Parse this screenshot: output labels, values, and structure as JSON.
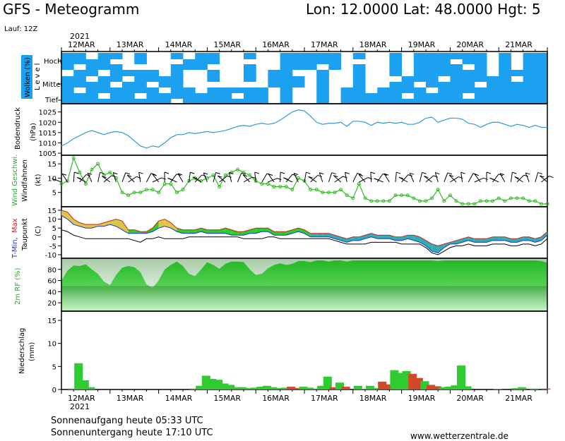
{
  "header": {
    "title": "GFS - Meteogramm",
    "coords": "Lon: 12.0000 Lat: 48.0000 Hgt: 5",
    "run": "Lauf: 12Z"
  },
  "axis": {
    "dates": [
      "12MAR",
      "13MAR",
      "14MAR",
      "15MAR",
      "16MAR",
      "17MAR",
      "18MAR",
      "19MAR",
      "20MAR",
      "21MAR"
    ],
    "year": "2021"
  },
  "panels": {
    "clouds": {
      "ylabel": "Wolken (%)",
      "levels_title": "Level",
      "levels": [
        "Hoch",
        "Mittel",
        "Tief"
      ]
    },
    "pressure": {
      "ylabel": "Bodendruck",
      "unit": "(hPa)"
    },
    "wind": {
      "ylabel_speed": "Wind Geschwi.",
      "ylabel_flags": "Windfahnen",
      "unit": "(kt)"
    },
    "temp": {
      "ylabel_min": "T-Min,",
      "ylabel_max": "Max",
      "ylabel_dew": "Taupunkt",
      "unit": "(C)"
    },
    "rh": {
      "ylabel": "2m RF (%)"
    },
    "precip": {
      "ylabel": "Niederschlag",
      "unit": "(mm)"
    }
  },
  "footer": {
    "sunrise": "Sonnenaufgang heute 05:33 UTC",
    "sunset": "Sonnenuntergang heute 17:10 UTC",
    "source": "www.wetterzentrale.de"
  },
  "colors": {
    "cloud": "#1ba1ef",
    "pressure": "#2f9ad6",
    "wind": "#39b52c",
    "rh": "#2fcc2f",
    "precip": "#2fcc2f",
    "precip_alt": "#d4482a"
  },
  "chart_data": [
    {
      "type": "line",
      "title": "Bodendruck",
      "ylabel": "(hPa)",
      "ylim": [
        1004,
        1029
      ],
      "yticks": [
        1005,
        1010,
        1015,
        1020,
        1025
      ],
      "x": [
        0,
        0.5,
        1,
        1.5,
        2,
        2.5,
        3,
        3.5,
        4,
        4.5,
        5,
        5.5,
        6,
        6.5,
        7,
        7.5,
        8,
        8.5,
        9,
        9.5,
        10,
        10.5,
        11,
        11.5,
        12,
        12.5,
        13,
        13.5,
        14,
        14.5,
        15,
        15.5,
        16,
        16.5,
        17,
        17.5,
        18,
        18.5,
        19,
        19.5,
        20,
        20.5,
        21,
        21.5,
        22,
        22.5,
        23,
        23.5,
        24,
        24.5,
        25,
        25.5,
        26,
        26.5,
        27,
        27.5,
        28,
        28.5,
        29,
        29.5,
        30,
        30.5,
        31,
        31.5,
        32,
        32.5,
        33,
        33.5,
        34,
        34.5,
        35,
        35.5,
        36,
        36.5,
        37,
        37.5,
        38,
        38.5,
        39,
        39.5,
        40
      ],
      "values": [
        1008.5,
        1010,
        1012,
        1013.5,
        1015,
        1016,
        1015,
        1014,
        1015,
        1015.5,
        1015,
        1013.5,
        1011,
        1008.5,
        1007.5,
        1008.5,
        1008,
        1010,
        1012.5,
        1014,
        1014,
        1015,
        1014.5,
        1015,
        1015.5,
        1015,
        1015.5,
        1016,
        1017,
        1018,
        1018.5,
        1018,
        1019,
        1019.5,
        1019,
        1019.5,
        1021,
        1023,
        1025,
        1026,
        1025.5,
        1023,
        1020,
        1019,
        1019.5,
        1019.5,
        1020,
        1018,
        1020.5,
        1020.5,
        1020,
        1018.5,
        1020,
        1019.5,
        1020,
        1019.5,
        1020,
        1019,
        1019,
        1020,
        1022,
        1022.5,
        1020,
        1021,
        1022,
        1022,
        1021.5,
        1019.5,
        1019,
        1017.5,
        1019,
        1020,
        1020,
        1019,
        1018,
        1019,
        1018.5,
        1017.5,
        1018.5,
        1017.5,
        1017.5
      ]
    },
    {
      "type": "line",
      "title": "Wind Geschwi.",
      "ylabel": "(kt)",
      "ylim": [
        0,
        18
      ],
      "yticks": [
        5,
        10,
        15
      ],
      "x": [
        0,
        0.5,
        1,
        1.5,
        2,
        2.5,
        3,
        3.5,
        4,
        4.5,
        5,
        5.5,
        6,
        6.5,
        7,
        7.5,
        8,
        8.5,
        9,
        9.5,
        10,
        10.5,
        11,
        11.5,
        12,
        12.5,
        13,
        13.5,
        14,
        14.5,
        15,
        15.5,
        16,
        16.5,
        17,
        17.5,
        18,
        18.5,
        19,
        19.5,
        20,
        20.5,
        21,
        21.5,
        22,
        22.5,
        23,
        23.5,
        24,
        24.5,
        25,
        25.5,
        26,
        26.5,
        27,
        27.5,
        28,
        28.5,
        29,
        29.5,
        30,
        30.5,
        31,
        31.5,
        32,
        32.5,
        33,
        33.5,
        34,
        34.5,
        35,
        35.5,
        36,
        36.5,
        37,
        37.5,
        38,
        38.5,
        39,
        39.5,
        40
      ],
      "values": [
        8,
        9,
        17,
        12,
        8,
        13,
        15,
        11,
        12,
        10,
        5,
        4,
        5,
        5,
        6,
        6,
        5,
        8,
        8,
        5,
        6,
        9,
        10,
        9,
        10,
        11,
        7,
        11,
        12,
        13,
        12,
        11,
        9,
        8,
        8,
        7,
        7,
        7,
        6,
        10,
        9,
        6,
        6,
        5,
        5,
        5,
        6,
        4,
        3,
        8,
        3,
        2,
        2,
        2,
        2,
        4,
        4,
        4,
        3,
        2,
        2,
        3,
        6,
        2,
        4,
        2,
        1,
        1,
        1,
        2,
        2,
        2,
        3,
        2,
        3,
        3,
        3,
        2,
        2,
        1,
        1
      ]
    },
    {
      "type": "area",
      "title": "T-Min, Max / Taupunkt",
      "ylabel": "(C)",
      "ylim": [
        -12,
        17
      ],
      "yticks": [
        -10,
        -5,
        0,
        5,
        10,
        15
      ],
      "x": [
        0,
        0.5,
        1,
        1.5,
        2,
        2.5,
        3,
        3.5,
        4,
        4.5,
        5,
        5.5,
        6,
        6.5,
        7,
        7.5,
        8,
        8.5,
        9,
        9.5,
        10,
        10.5,
        11,
        11.5,
        12,
        12.5,
        13,
        13.5,
        14,
        14.5,
        15,
        15.5,
        16,
        16.5,
        17,
        17.5,
        18,
        18.5,
        19,
        19.5,
        20,
        20.5,
        21,
        21.5,
        22,
        22.5,
        23,
        23.5,
        24,
        24.5,
        25,
        25.5,
        26,
        26.5,
        27,
        27.5,
        28,
        28.5,
        29,
        29.5,
        30,
        30.5,
        31,
        31.5,
        32,
        32.5,
        33,
        33.5,
        34,
        34.5,
        35,
        35.5,
        36,
        36.5,
        37,
        37.5,
        38,
        38.5,
        39,
        39.5,
        40
      ],
      "series": [
        {
          "name": "Max",
          "values": [
            15,
            14,
            10,
            8,
            7,
            7,
            7,
            8,
            9,
            10,
            9,
            4,
            4,
            3,
            3,
            5,
            9,
            10,
            8,
            5,
            4,
            4,
            4,
            5,
            4,
            4,
            4,
            5,
            4,
            3,
            3,
            4,
            5,
            5,
            5,
            3,
            3,
            3,
            4,
            5,
            4,
            2,
            2,
            2,
            2,
            1,
            0,
            -1,
            0,
            0,
            1,
            2,
            1,
            1,
            1,
            0,
            0,
            1,
            1,
            0,
            -2,
            -4,
            -5,
            -4,
            -3,
            -2,
            -1,
            0,
            -1,
            -1,
            -1,
            0,
            0,
            0,
            -1,
            -1,
            0,
            0,
            -1,
            0,
            3
          ]
        },
        {
          "name": "Min",
          "values": [
            12,
            10,
            7,
            6,
            5,
            5,
            6,
            6,
            7,
            6,
            4,
            2,
            2,
            2,
            2,
            3,
            5,
            6,
            5,
            3,
            2,
            2,
            2,
            3,
            2,
            2,
            2,
            2,
            1,
            1,
            1,
            2,
            2,
            3,
            3,
            1,
            1,
            1,
            2,
            3,
            2,
            0,
            0,
            0,
            0,
            -1,
            -2,
            -3,
            -2,
            -2,
            -1,
            0,
            -1,
            -1,
            -1,
            -2,
            -2,
            -1,
            -2,
            -3,
            -5,
            -8,
            -9,
            -6,
            -4,
            -4,
            -3,
            -2,
            -3,
            -3,
            -3,
            -2,
            -2,
            -2,
            -3,
            -3,
            -2,
            -2,
            -3,
            -2,
            1
          ]
        },
        {
          "name": "Taupunkt",
          "values": [
            4,
            3,
            1,
            0,
            -1,
            -1,
            -1,
            -1,
            -1,
            -1,
            -1,
            -1,
            -2,
            -3,
            -1,
            -1,
            0,
            -1,
            -1,
            -1,
            -1,
            0,
            0,
            0,
            0,
            0,
            0,
            0,
            0,
            0,
            -1,
            -1,
            -1,
            -1,
            0,
            0,
            -1,
            -1,
            -1,
            -1,
            -1,
            -1,
            -1,
            -1,
            -1,
            -2,
            -3,
            -4,
            -4,
            -4,
            -4,
            -3,
            -3,
            -3,
            -3,
            -3,
            -4,
            -4,
            -4,
            -4,
            -6,
            -9,
            -10,
            -8,
            -6,
            -5,
            -5,
            -4,
            -5,
            -5,
            -5,
            -4,
            -4,
            -4,
            -5,
            -5,
            -4,
            -4,
            -5,
            -4,
            -1
          ]
        }
      ]
    },
    {
      "type": "area",
      "title": "2m RF",
      "ylabel": "(%)",
      "ylim": [
        5,
        100
      ],
      "yticks": [
        20,
        40,
        60,
        80
      ],
      "x": [
        0,
        0.5,
        1,
        1.5,
        2,
        2.5,
        3,
        3.5,
        4,
        4.5,
        5,
        5.5,
        6,
        6.5,
        7,
        7.5,
        8,
        8.5,
        9,
        9.5,
        10,
        10.5,
        11,
        11.5,
        12,
        12.5,
        13,
        13.5,
        14,
        14.5,
        15,
        15.5,
        16,
        16.5,
        17,
        17.5,
        18,
        18.5,
        19,
        19.5,
        20,
        20.5,
        21,
        21.5,
        22,
        22.5,
        23,
        23.5,
        24,
        24.5,
        25,
        25.5,
        26,
        26.5,
        27,
        27.5,
        28,
        28.5,
        29,
        29.5,
        30,
        30.5,
        31,
        31.5,
        32,
        32.5,
        33,
        33.5,
        34,
        34.5,
        35,
        35.5,
        36,
        36.5,
        37,
        37.5,
        38,
        38.5,
        39,
        39.5,
        40
      ],
      "values": [
        60,
        78,
        87,
        86,
        89,
        80,
        72,
        58,
        52,
        70,
        83,
        86,
        84,
        75,
        53,
        47,
        60,
        80,
        88,
        94,
        86,
        72,
        68,
        80,
        93,
        88,
        81,
        90,
        94,
        94,
        93,
        80,
        70,
        72,
        82,
        88,
        91,
        88,
        90,
        95,
        95,
        93,
        96,
        96,
        94,
        96,
        96,
        94,
        96,
        96,
        96,
        96,
        96,
        96,
        96,
        96,
        96,
        96,
        96,
        96,
        96,
        96,
        95,
        96,
        96,
        96,
        96,
        96,
        96,
        96,
        96,
        96,
        96,
        96,
        96,
        96,
        96,
        96,
        96,
        95,
        92
      ]
    },
    {
      "type": "bar",
      "title": "Niederschlag",
      "ylabel": "(mm)",
      "ylim": [
        0,
        17
      ],
      "yticks": [
        0,
        5,
        10,
        15
      ],
      "x": [
        0,
        0.5,
        1,
        1.5,
        2,
        2.5,
        3,
        3.5,
        4,
        4.5,
        5,
        5.5,
        6,
        6.5,
        7,
        7.5,
        8,
        8.5,
        9,
        9.5,
        10,
        10.5,
        11,
        11.5,
        12,
        12.5,
        13,
        13.5,
        14,
        14.5,
        15,
        15.5,
        16,
        16.5,
        17,
        17.5,
        18,
        18.5,
        19,
        19.5,
        20,
        20.5,
        21,
        21.5,
        22,
        22.5,
        23,
        23.5,
        24,
        24.5,
        25,
        25.5,
        26,
        26.5,
        27,
        27.5,
        28,
        28.5,
        29,
        29.5,
        30,
        30.5,
        31,
        31.5,
        32,
        32.5,
        33,
        33.5,
        34,
        34.5,
        35,
        35.5,
        36,
        36.5,
        37,
        37.5,
        38,
        38.5,
        39,
        39.5,
        40
      ],
      "values": [
        0,
        0.2,
        5.7,
        2,
        0.5,
        0,
        0,
        0,
        0,
        0,
        0,
        0,
        0,
        0,
        0,
        0,
        0,
        0,
        0,
        0,
        0,
        0.2,
        0.8,
        3,
        2.3,
        2.1,
        1.3,
        1,
        0.5,
        0.5,
        0.3,
        0.4,
        0.6,
        0.8,
        0.5,
        0.3,
        0.4,
        0.6,
        0.3,
        0.6,
        0.4,
        0.2,
        0.8,
        2.8,
        0.5,
        1.5,
        0.6,
        0,
        0.8,
        0.1,
        0.8,
        0.3,
        1.7,
        1.1,
        4.2,
        3.6,
        4,
        3.4,
        2.5,
        1.8,
        1,
        0.7,
        0.5,
        0.6,
        0.9,
        5.2,
        0.7,
        0,
        0,
        0,
        0,
        0.1,
        0,
        0,
        0.3,
        0.5,
        0,
        0.2,
        0,
        0.2,
        0
      ],
      "alt_color_indices": [
        37,
        38,
        44,
        46,
        52,
        53,
        57,
        58,
        60,
        61,
        72,
        73,
        76,
        79
      ]
    }
  ]
}
